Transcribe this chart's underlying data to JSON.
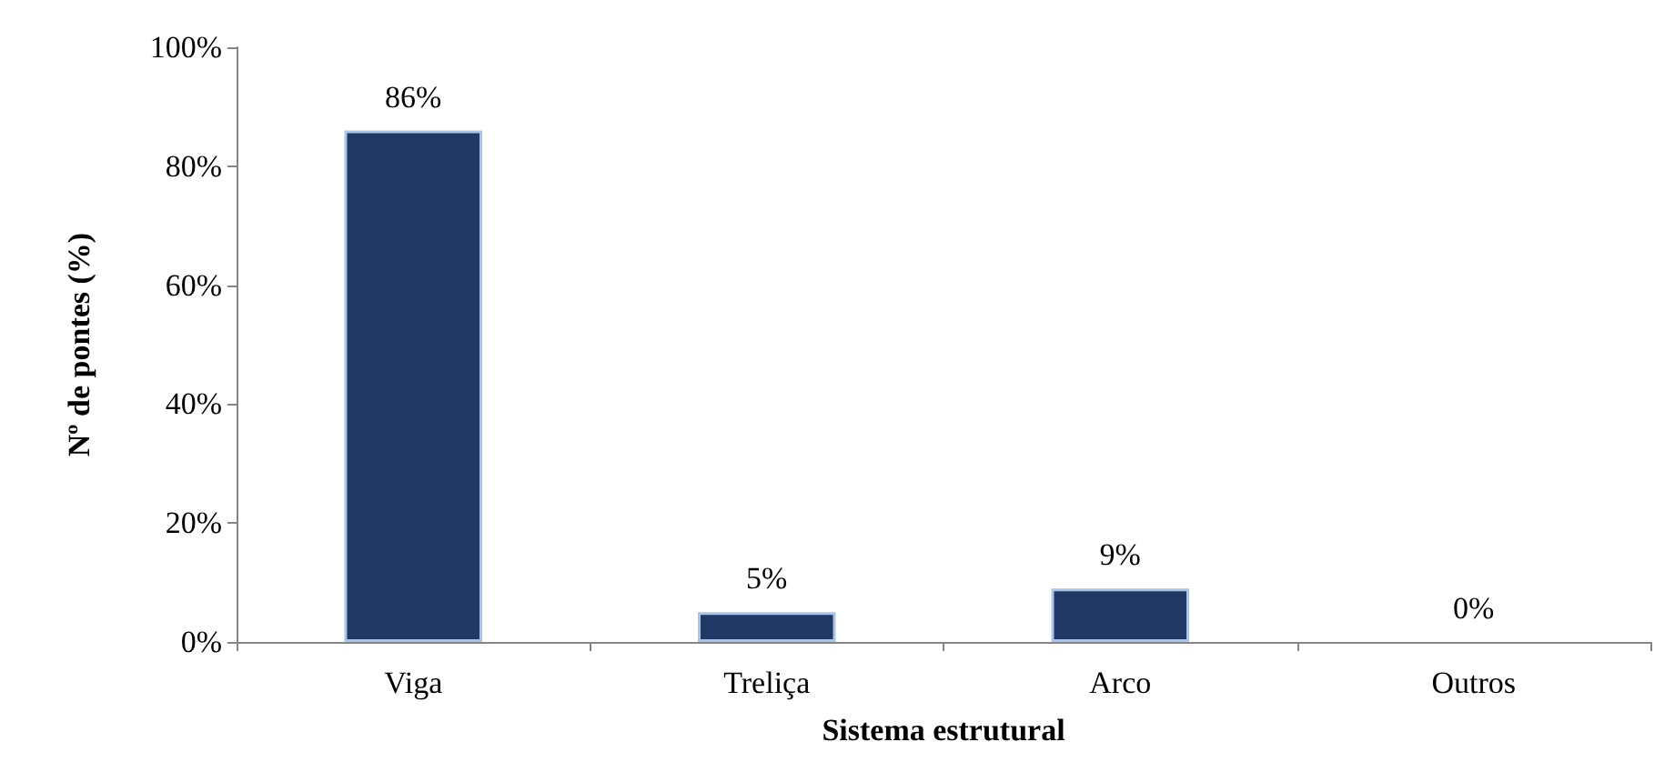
{
  "chart_data": {
    "type": "bar",
    "xlabel": "Sistema estrutural",
    "ylabel": "Nº de pontes (%)",
    "categories": [
      "Viga",
      "Treliça",
      "Arco",
      "Outros"
    ],
    "values": [
      86,
      5,
      9,
      0
    ],
    "value_labels": [
      "86%",
      "5%",
      "9%",
      "0%"
    ],
    "color": "#1f3864",
    "ylim": [
      0,
      100
    ],
    "yticks": [
      {
        "value": 0,
        "label": "0%"
      },
      {
        "value": 20,
        "label": "20%"
      },
      {
        "value": 40,
        "label": "40%"
      },
      {
        "value": 60,
        "label": "60%"
      },
      {
        "value": 80,
        "label": "80%"
      },
      {
        "value": 100,
        "label": "100%"
      }
    ],
    "grid": false
  }
}
